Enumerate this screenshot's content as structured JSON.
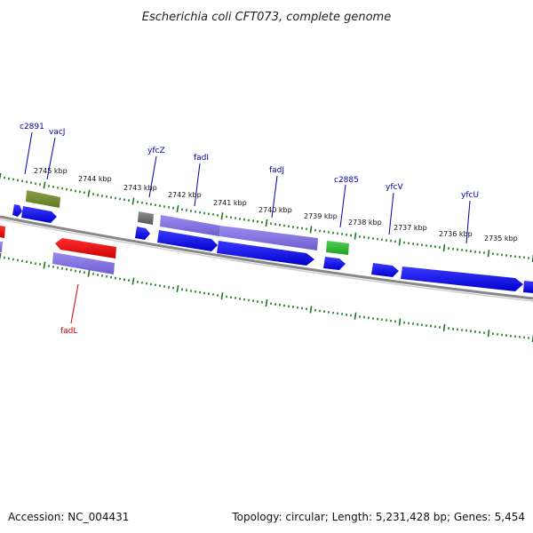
{
  "title": "Escherichia coli CFT073, complete genome",
  "accession": "Accession: NC_004431",
  "summary": "Topology: circular; Length: 5,231,428 bp; Genes: 5,454",
  "colors": {
    "backbone": "#808080",
    "tick": "#1a7a1a",
    "label_forward": "#0000aa",
    "label_reverse": "#cc0000"
  },
  "scale_labels": [
    "2745 kbp",
    "2744 kbp",
    "2743 kbp",
    "2742 kbp",
    "2741 kbp",
    "2740 kbp",
    "2739 kbp",
    "2738 kbp",
    "2737 kbp",
    "2736 kbp",
    "2735 kbp"
  ],
  "gene_labels": [
    {
      "text": "c2891",
      "strand": "forward"
    },
    {
      "text": "vacJ",
      "strand": "forward"
    },
    {
      "text": "yfcZ",
      "strand": "forward"
    },
    {
      "text": "fadI",
      "strand": "forward"
    },
    {
      "text": "fadJ",
      "strand": "forward"
    },
    {
      "text": "c2885",
      "strand": "forward"
    },
    {
      "text": "yfcV",
      "strand": "forward"
    },
    {
      "text": "yfcU",
      "strand": "forward"
    },
    {
      "text": "fadL",
      "strand": "reverse"
    }
  ]
}
